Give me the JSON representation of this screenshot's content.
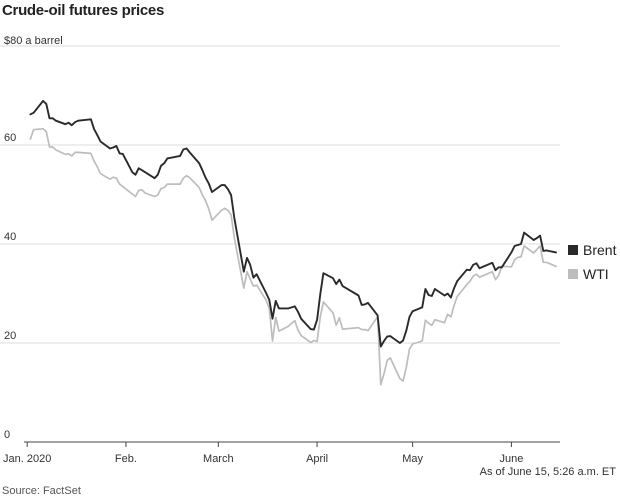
{
  "page": {
    "title": "Crude-oil futures prices",
    "unit_label": "$80 a barrel",
    "as_of": "As of June 15, 5:26 a.m. ET",
    "source": "Source: FactSet"
  },
  "colors": {
    "brent": "#2a2a2a",
    "wti": "#bdbdbd",
    "grid": "#dddddd",
    "axis": "#444444"
  },
  "chart_data": {
    "type": "line",
    "title": "Crude-oil futures prices",
    "ylabel": "$80 a barrel",
    "xlabel": "",
    "ylim": [
      0,
      80
    ],
    "xlim": [
      "2019-12-31",
      "2020-06-15"
    ],
    "grid": true,
    "legend_position": "right",
    "y_ticks": [
      {
        "value": 80,
        "label": ""
      },
      {
        "value": 60,
        "label": "60"
      },
      {
        "value": 40,
        "label": "40"
      },
      {
        "value": 20,
        "label": "20"
      },
      {
        "value": 0,
        "label": "0"
      }
    ],
    "x_ticks": [
      {
        "date": "2020-01-01",
        "label": "Jan. 2020"
      },
      {
        "date": "2020-02-01",
        "label": "Feb."
      },
      {
        "date": "2020-03-01",
        "label": "March"
      },
      {
        "date": "2020-04-01",
        "label": "April"
      },
      {
        "date": "2020-05-01",
        "label": "May"
      },
      {
        "date": "2020-06-01",
        "label": "June"
      }
    ],
    "series": [
      {
        "name": "Brent",
        "color": "#2a2a2a",
        "points": [
          [
            "2020-01-02",
            66.2
          ],
          [
            "2020-01-03",
            66.5
          ],
          [
            "2020-01-06",
            68.9
          ],
          [
            "2020-01-07",
            68.3
          ],
          [
            "2020-01-08",
            65.4
          ],
          [
            "2020-01-09",
            65.4
          ],
          [
            "2020-01-10",
            64.9
          ],
          [
            "2020-01-13",
            64.2
          ],
          [
            "2020-01-14",
            64.5
          ],
          [
            "2020-01-15",
            64.0
          ],
          [
            "2020-01-16",
            64.6
          ],
          [
            "2020-01-17",
            64.9
          ],
          [
            "2020-01-21",
            65.2
          ],
          [
            "2020-01-22",
            63.2
          ],
          [
            "2020-01-23",
            62.0
          ],
          [
            "2020-01-24",
            60.7
          ],
          [
            "2020-01-27",
            59.3
          ],
          [
            "2020-01-28",
            59.5
          ],
          [
            "2020-01-29",
            59.8
          ],
          [
            "2020-01-30",
            58.3
          ],
          [
            "2020-01-31",
            58.2
          ],
          [
            "2020-02-03",
            54.5
          ],
          [
            "2020-02-04",
            54.0
          ],
          [
            "2020-02-05",
            55.3
          ],
          [
            "2020-02-06",
            54.9
          ],
          [
            "2020-02-07",
            54.5
          ],
          [
            "2020-02-10",
            53.3
          ],
          [
            "2020-02-11",
            54.0
          ],
          [
            "2020-02-12",
            55.8
          ],
          [
            "2020-02-13",
            56.3
          ],
          [
            "2020-02-14",
            57.3
          ],
          [
            "2020-02-18",
            57.8
          ],
          [
            "2020-02-19",
            59.1
          ],
          [
            "2020-02-20",
            59.3
          ],
          [
            "2020-02-21",
            58.5
          ],
          [
            "2020-02-24",
            56.3
          ],
          [
            "2020-02-25",
            54.9
          ],
          [
            "2020-02-26",
            53.4
          ],
          [
            "2020-02-27",
            52.2
          ],
          [
            "2020-02-28",
            50.5
          ],
          [
            "2020-03-02",
            51.9
          ],
          [
            "2020-03-03",
            51.9
          ],
          [
            "2020-03-04",
            51.1
          ],
          [
            "2020-03-05",
            49.9
          ],
          [
            "2020-03-06",
            45.3
          ],
          [
            "2020-03-09",
            34.4
          ],
          [
            "2020-03-10",
            37.2
          ],
          [
            "2020-03-11",
            35.8
          ],
          [
            "2020-03-12",
            33.2
          ],
          [
            "2020-03-13",
            33.9
          ],
          [
            "2020-03-16",
            30.1
          ],
          [
            "2020-03-17",
            28.7
          ],
          [
            "2020-03-18",
            24.9
          ],
          [
            "2020-03-19",
            28.5
          ],
          [
            "2020-03-20",
            27.0
          ],
          [
            "2020-03-23",
            27.0
          ],
          [
            "2020-03-24",
            27.2
          ],
          [
            "2020-03-25",
            27.4
          ],
          [
            "2020-03-26",
            26.3
          ],
          [
            "2020-03-27",
            24.9
          ],
          [
            "2020-03-30",
            22.8
          ],
          [
            "2020-03-31",
            22.7
          ],
          [
            "2020-04-01",
            24.7
          ],
          [
            "2020-04-02",
            29.9
          ],
          [
            "2020-04-03",
            34.1
          ],
          [
            "2020-04-06",
            33.1
          ],
          [
            "2020-04-07",
            31.9
          ],
          [
            "2020-04-08",
            32.8
          ],
          [
            "2020-04-09",
            31.5
          ],
          [
            "2020-04-14",
            29.6
          ],
          [
            "2020-04-15",
            27.7
          ],
          [
            "2020-04-16",
            27.8
          ],
          [
            "2020-04-17",
            28.1
          ],
          [
            "2020-04-20",
            25.6
          ],
          [
            "2020-04-21",
            19.3
          ],
          [
            "2020-04-22",
            20.4
          ],
          [
            "2020-04-23",
            21.3
          ],
          [
            "2020-04-24",
            21.4
          ],
          [
            "2020-04-27",
            20.0
          ],
          [
            "2020-04-28",
            20.5
          ],
          [
            "2020-04-29",
            22.5
          ],
          [
            "2020-04-30",
            25.3
          ],
          [
            "2020-05-01",
            26.4
          ],
          [
            "2020-05-04",
            27.2
          ],
          [
            "2020-05-05",
            30.9
          ],
          [
            "2020-05-06",
            29.7
          ],
          [
            "2020-05-07",
            29.5
          ],
          [
            "2020-05-08",
            30.9
          ],
          [
            "2020-05-11",
            29.6
          ],
          [
            "2020-05-12",
            29.98
          ],
          [
            "2020-05-13",
            29.2
          ],
          [
            "2020-05-14",
            31.1
          ],
          [
            "2020-05-15",
            32.5
          ],
          [
            "2020-05-18",
            34.8
          ],
          [
            "2020-05-19",
            34.7
          ],
          [
            "2020-05-20",
            35.8
          ],
          [
            "2020-05-21",
            36.1
          ],
          [
            "2020-05-22",
            35.1
          ],
          [
            "2020-05-26",
            36.2
          ],
          [
            "2020-05-27",
            34.7
          ],
          [
            "2020-05-28",
            35.3
          ],
          [
            "2020-05-29",
            35.3
          ],
          [
            "2020-06-01",
            38.3
          ],
          [
            "2020-06-02",
            39.6
          ],
          [
            "2020-06-03",
            39.8
          ],
          [
            "2020-06-04",
            40.0
          ],
          [
            "2020-06-05",
            42.3
          ],
          [
            "2020-06-08",
            40.8
          ],
          [
            "2020-06-09",
            41.2
          ],
          [
            "2020-06-10",
            41.7
          ],
          [
            "2020-06-11",
            38.6
          ],
          [
            "2020-06-12",
            38.7
          ],
          [
            "2020-06-15",
            38.3
          ]
        ]
      },
      {
        "name": "WTI",
        "color": "#bdbdbd",
        "points": [
          [
            "2020-01-02",
            61.2
          ],
          [
            "2020-01-03",
            63.1
          ],
          [
            "2020-01-06",
            63.3
          ],
          [
            "2020-01-07",
            62.7
          ],
          [
            "2020-01-08",
            59.6
          ],
          [
            "2020-01-09",
            59.6
          ],
          [
            "2020-01-10",
            59.0
          ],
          [
            "2020-01-13",
            58.1
          ],
          [
            "2020-01-14",
            58.2
          ],
          [
            "2020-01-15",
            57.8
          ],
          [
            "2020-01-16",
            58.5
          ],
          [
            "2020-01-17",
            58.5
          ],
          [
            "2020-01-21",
            58.3
          ],
          [
            "2020-01-22",
            56.7
          ],
          [
            "2020-01-23",
            55.6
          ],
          [
            "2020-01-24",
            54.2
          ],
          [
            "2020-01-27",
            53.1
          ],
          [
            "2020-01-28",
            53.5
          ],
          [
            "2020-01-29",
            53.3
          ],
          [
            "2020-01-30",
            52.1
          ],
          [
            "2020-01-31",
            51.6
          ],
          [
            "2020-02-03",
            50.1
          ],
          [
            "2020-02-04",
            49.6
          ],
          [
            "2020-02-05",
            50.8
          ],
          [
            "2020-02-06",
            50.95
          ],
          [
            "2020-02-07",
            50.3
          ],
          [
            "2020-02-10",
            49.6
          ],
          [
            "2020-02-11",
            49.9
          ],
          [
            "2020-02-12",
            51.2
          ],
          [
            "2020-02-13",
            51.4
          ],
          [
            "2020-02-14",
            52.1
          ],
          [
            "2020-02-18",
            52.1
          ],
          [
            "2020-02-19",
            53.3
          ],
          [
            "2020-02-20",
            53.8
          ],
          [
            "2020-02-21",
            53.4
          ],
          [
            "2020-02-24",
            51.4
          ],
          [
            "2020-02-25",
            49.9
          ],
          [
            "2020-02-26",
            48.7
          ],
          [
            "2020-02-27",
            47.1
          ],
          [
            "2020-02-28",
            44.8
          ],
          [
            "2020-03-02",
            46.8
          ],
          [
            "2020-03-03",
            47.2
          ],
          [
            "2020-03-04",
            46.8
          ],
          [
            "2020-03-05",
            45.9
          ],
          [
            "2020-03-06",
            41.3
          ],
          [
            "2020-03-09",
            31.1
          ],
          [
            "2020-03-10",
            34.4
          ],
          [
            "2020-03-11",
            32.9
          ],
          [
            "2020-03-12",
            31.5
          ],
          [
            "2020-03-13",
            31.7
          ],
          [
            "2020-03-16",
            28.7
          ],
          [
            "2020-03-17",
            26.95
          ],
          [
            "2020-03-18",
            20.4
          ],
          [
            "2020-03-19",
            25.2
          ],
          [
            "2020-03-20",
            22.4
          ],
          [
            "2020-03-23",
            23.4
          ],
          [
            "2020-03-24",
            24.0
          ],
          [
            "2020-03-25",
            24.5
          ],
          [
            "2020-03-26",
            22.6
          ],
          [
            "2020-03-27",
            21.5
          ],
          [
            "2020-03-30",
            20.1
          ],
          [
            "2020-03-31",
            20.5
          ],
          [
            "2020-04-01",
            20.3
          ],
          [
            "2020-04-02",
            25.3
          ],
          [
            "2020-04-03",
            28.3
          ],
          [
            "2020-04-06",
            26.1
          ],
          [
            "2020-04-07",
            23.6
          ],
          [
            "2020-04-08",
            25.1
          ],
          [
            "2020-04-09",
            22.8
          ],
          [
            "2020-04-14",
            23.1
          ],
          [
            "2020-04-15",
            22.7
          ],
          [
            "2020-04-16",
            22.7
          ],
          [
            "2020-04-17",
            22.5
          ],
          [
            "2020-04-20",
            25.3
          ],
          [
            "2020-04-21",
            11.6
          ],
          [
            "2020-04-22",
            13.8
          ],
          [
            "2020-04-23",
            16.5
          ],
          [
            "2020-04-24",
            17.0
          ],
          [
            "2020-04-27",
            12.8
          ],
          [
            "2020-04-28",
            12.3
          ],
          [
            "2020-04-29",
            15.1
          ],
          [
            "2020-04-30",
            18.8
          ],
          [
            "2020-05-01",
            19.8
          ],
          [
            "2020-05-04",
            20.4
          ],
          [
            "2020-05-05",
            24.6
          ],
          [
            "2020-05-06",
            23.99
          ],
          [
            "2020-05-07",
            23.55
          ],
          [
            "2020-05-08",
            24.7
          ],
          [
            "2020-05-11",
            24.1
          ],
          [
            "2020-05-12",
            25.8
          ],
          [
            "2020-05-13",
            25.3
          ],
          [
            "2020-05-14",
            27.6
          ],
          [
            "2020-05-15",
            29.4
          ],
          [
            "2020-05-18",
            31.8
          ],
          [
            "2020-05-19",
            32.5
          ],
          [
            "2020-05-20",
            33.5
          ],
          [
            "2020-05-21",
            33.9
          ],
          [
            "2020-05-22",
            33.3
          ],
          [
            "2020-05-26",
            34.4
          ],
          [
            "2020-05-27",
            32.8
          ],
          [
            "2020-05-28",
            33.7
          ],
          [
            "2020-05-29",
            35.5
          ],
          [
            "2020-06-01",
            35.4
          ],
          [
            "2020-06-02",
            36.8
          ],
          [
            "2020-06-03",
            37.3
          ],
          [
            "2020-06-04",
            37.4
          ],
          [
            "2020-06-05",
            39.6
          ],
          [
            "2020-06-08",
            38.2
          ],
          [
            "2020-06-09",
            38.9
          ],
          [
            "2020-06-10",
            39.6
          ],
          [
            "2020-06-11",
            36.3
          ],
          [
            "2020-06-12",
            36.3
          ],
          [
            "2020-06-15",
            35.5
          ]
        ]
      }
    ]
  }
}
